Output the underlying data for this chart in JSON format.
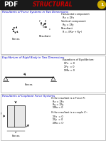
{
  "title": "STRUCTURAL",
  "page_num": "1",
  "bg_color": "#ffffff",
  "title_color": "#cc0000",
  "header_bg": "#1a1a1a",
  "pdf_text": "PDF",
  "section1_title": "Resultants of Force Systems in Two Dimensions",
  "section1_eq1": "Horizontal component",
  "section1_eq2": "Rx = ΣFx",
  "section1_eq3": "Vertical component",
  "section1_eq4": "Ry = ΣFy",
  "section1_eq5": "Resultant",
  "section1_eq6": "R = √(Rx² + Ry²)",
  "section1_label1": "Forces",
  "section1_label2": "Resultant",
  "section2_title": "Equilibrium of Rigid Body in Two Dimensions",
  "section2_eq_title": "Equations of Equilibrium:",
  "section2_eq1": "ΣFx  = 0",
  "section2_eq2": "ΣFy  = 0",
  "section2_eq3": "ΣMo = 0",
  "section2_label": "Forces",
  "section3_title": "Resultants of Coplanar Force Systems",
  "section3_eq1": "If the resultant is a Force R:",
  "section3_eq2": "Rx = ΣFx",
  "section3_eq3": "Ry = ΣFy",
  "section3_eq4": "ΣMo = 0",
  "section3_eq5": "If the resultant is a couple Cᵒ:",
  "section3_eq6": "ΣFx  = 0",
  "section3_eq7": "ΣFy  = 0",
  "section3_eq8": "ΣMo = Cᵒ",
  "section3_label": "Forces"
}
